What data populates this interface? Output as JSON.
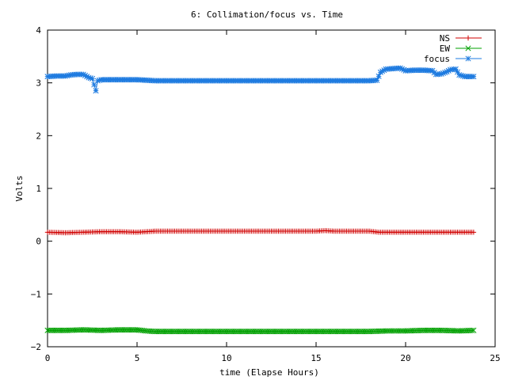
{
  "chart_data": {
    "type": "line",
    "title": "6: Collimation/focus vs. Time",
    "xlabel": "time (Elapse Hours)",
    "ylabel": "Volts",
    "xlim": [
      0,
      25
    ],
    "ylim": [
      -2,
      4
    ],
    "xticks": [
      0,
      5,
      10,
      15,
      20,
      25
    ],
    "yticks": [
      -2,
      -1,
      0,
      1,
      2,
      3,
      4
    ],
    "xtick_labels": [
      "0",
      "5",
      "10",
      "15",
      "20",
      "25"
    ],
    "ytick_labels": [
      "−2",
      "−1",
      "0",
      "1",
      "2",
      "3",
      "4"
    ],
    "grid": false,
    "legend_position": "top-right",
    "series": [
      {
        "name": "NS",
        "color": "#d00000",
        "marker": "plus",
        "x": [
          0,
          1,
          2,
          3,
          4,
          5,
          5.5,
          6,
          7,
          8,
          9,
          10,
          11,
          12,
          13,
          14,
          15,
          15.5,
          16,
          17,
          18,
          18.5,
          19,
          20,
          21,
          22,
          23,
          23.8
        ],
        "y": [
          0.17,
          0.16,
          0.17,
          0.18,
          0.18,
          0.17,
          0.18,
          0.19,
          0.19,
          0.19,
          0.19,
          0.19,
          0.19,
          0.19,
          0.19,
          0.19,
          0.19,
          0.2,
          0.19,
          0.19,
          0.19,
          0.17,
          0.17,
          0.17,
          0.17,
          0.17,
          0.17,
          0.17
        ]
      },
      {
        "name": "EW",
        "color": "#00a000",
        "marker": "x",
        "x": [
          0,
          1,
          2,
          3,
          4,
          5,
          5.5,
          6,
          7,
          8,
          9,
          10,
          11,
          12,
          13,
          14,
          15,
          16,
          17,
          18,
          19,
          20,
          21,
          22,
          23,
          23.8
        ],
        "y": [
          -1.69,
          -1.69,
          -1.68,
          -1.69,
          -1.68,
          -1.68,
          -1.7,
          -1.71,
          -1.71,
          -1.71,
          -1.71,
          -1.71,
          -1.71,
          -1.71,
          -1.71,
          -1.71,
          -1.71,
          -1.71,
          -1.71,
          -1.71,
          -1.7,
          -1.7,
          -1.69,
          -1.69,
          -1.7,
          -1.69
        ]
      },
      {
        "name": "focus",
        "color": "#1e7be0",
        "marker": "star",
        "x": [
          0,
          0.5,
          1,
          1.3,
          1.6,
          2,
          2.3,
          2.5,
          2.7,
          2.8,
          3,
          3.5,
          4,
          4.5,
          5,
          5.5,
          6,
          7,
          8,
          9,
          10,
          11,
          12,
          13,
          14,
          15,
          16,
          17,
          18,
          18.4,
          18.6,
          18.9,
          19.3,
          19.7,
          20,
          20.5,
          21,
          21.5,
          21.7,
          22,
          22.3,
          22.5,
          22.8,
          23,
          23.3,
          23.6,
          23.8
        ],
        "y": [
          3.12,
          3.13,
          3.13,
          3.15,
          3.16,
          3.16,
          3.1,
          3.08,
          2.85,
          3.04,
          3.06,
          3.06,
          3.06,
          3.06,
          3.06,
          3.05,
          3.04,
          3.04,
          3.04,
          3.04,
          3.04,
          3.04,
          3.04,
          3.04,
          3.04,
          3.04,
          3.04,
          3.04,
          3.04,
          3.05,
          3.2,
          3.26,
          3.27,
          3.28,
          3.23,
          3.24,
          3.24,
          3.23,
          3.16,
          3.17,
          3.21,
          3.25,
          3.26,
          3.15,
          3.12,
          3.12,
          3.12
        ]
      }
    ]
  }
}
